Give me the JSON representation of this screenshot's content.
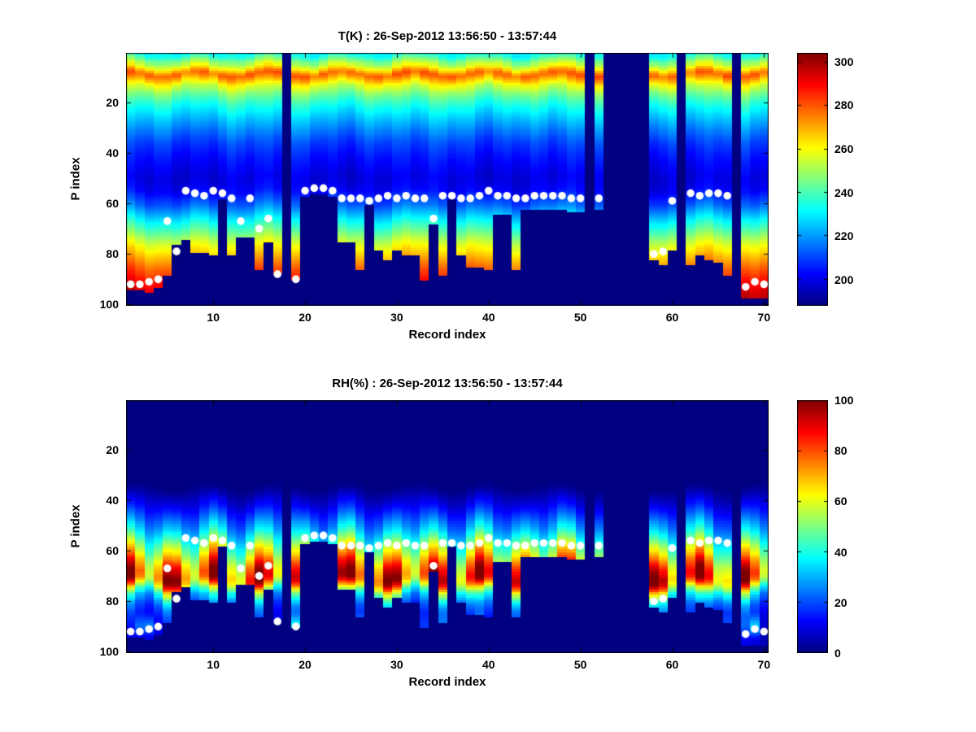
{
  "figure": {
    "background": "#ffffff",
    "nodata_color": "#000080",
    "marker_color": "#ffffff"
  },
  "chart_data": {
    "type": "heatmap",
    "colormap": "jet",
    "shared": {
      "x_label": "Record index",
      "y_label": "P index",
      "x_range": [
        1,
        70
      ],
      "y_range": [
        1,
        100
      ],
      "x_ticks": [
        10,
        20,
        30,
        40,
        50,
        60,
        70
      ],
      "y_ticks": [
        20,
        40,
        60,
        80,
        100
      ],
      "y_axis_direction": "reverse",
      "gap_records": [
        18,
        51,
        53,
        54,
        55,
        56,
        57,
        61,
        67
      ],
      "surface_cutoff_p": [
        94,
        94,
        95,
        93,
        88,
        76,
        74,
        79,
        79,
        80,
        58,
        80,
        73,
        73,
        86,
        75,
        87,
        null,
        90,
        57,
        56,
        56,
        57,
        75,
        75,
        86,
        60,
        78,
        82,
        78,
        80,
        80,
        90,
        68,
        88,
        58,
        80,
        85,
        85,
        86,
        64,
        64,
        86,
        62,
        62,
        62,
        62,
        62,
        63,
        63,
        null,
        62,
        null,
        null,
        null,
        null,
        null,
        82,
        84,
        78,
        null,
        84,
        80,
        82,
        83,
        88,
        null,
        97,
        97,
        97
      ],
      "white_dots": [
        [
          1,
          92
        ],
        [
          2,
          92
        ],
        [
          3,
          91
        ],
        [
          4,
          90
        ],
        [
          5,
          67
        ],
        [
          6,
          79
        ],
        [
          7,
          55
        ],
        [
          8,
          56
        ],
        [
          9,
          57
        ],
        [
          10,
          55
        ],
        [
          11,
          56
        ],
        [
          12,
          58
        ],
        [
          13,
          67
        ],
        [
          14,
          58
        ],
        [
          15,
          70
        ],
        [
          16,
          66
        ],
        [
          17,
          88
        ],
        [
          19,
          90
        ],
        [
          20,
          55
        ],
        [
          21,
          54
        ],
        [
          22,
          54
        ],
        [
          23,
          55
        ],
        [
          24,
          58
        ],
        [
          25,
          58
        ],
        [
          26,
          58
        ],
        [
          27,
          59
        ],
        [
          28,
          58
        ],
        [
          29,
          57
        ],
        [
          30,
          58
        ],
        [
          31,
          57
        ],
        [
          32,
          58
        ],
        [
          33,
          58
        ],
        [
          34,
          66
        ],
        [
          35,
          57
        ],
        [
          36,
          57
        ],
        [
          37,
          58
        ],
        [
          38,
          58
        ],
        [
          39,
          57
        ],
        [
          40,
          55
        ],
        [
          41,
          57
        ],
        [
          42,
          57
        ],
        [
          43,
          58
        ],
        [
          44,
          58
        ],
        [
          45,
          57
        ],
        [
          46,
          57
        ],
        [
          47,
          57
        ],
        [
          48,
          57
        ],
        [
          49,
          58
        ],
        [
          50,
          58
        ],
        [
          52,
          58
        ],
        [
          58,
          80
        ],
        [
          59,
          79
        ],
        [
          60,
          59
        ],
        [
          62,
          56
        ],
        [
          63,
          57
        ],
        [
          64,
          56
        ],
        [
          65,
          56
        ],
        [
          66,
          57
        ],
        [
          68,
          93
        ],
        [
          69,
          91
        ],
        [
          70,
          92
        ]
      ],
      "marker": {
        "shape": "circle",
        "color": "#ffffff"
      }
    },
    "panels": [
      {
        "name": "temperature",
        "title": "T(K) : 26-Sep-2012 13:56:50 - 13:57:44",
        "units": "K",
        "color_range": [
          188,
          304
        ],
        "colorbar_ticks": [
          200,
          220,
          240,
          260,
          280,
          300
        ],
        "vertical_profile": [
          [
            1,
            232
          ],
          [
            3,
            242
          ],
          [
            6,
            258
          ],
          [
            8,
            272
          ],
          [
            9,
            277
          ],
          [
            11,
            268
          ],
          [
            13,
            258
          ],
          [
            16,
            247
          ],
          [
            20,
            237
          ],
          [
            25,
            227
          ],
          [
            30,
            219
          ],
          [
            35,
            211
          ],
          [
            42,
            204
          ],
          [
            50,
            199
          ],
          [
            55,
            202
          ],
          [
            60,
            212
          ],
          [
            65,
            226
          ],
          [
            70,
            240
          ],
          [
            75,
            254
          ],
          [
            80,
            266
          ],
          [
            85,
            277
          ],
          [
            90,
            287
          ],
          [
            95,
            294
          ],
          [
            100,
            299
          ]
        ]
      },
      {
        "name": "relative_humidity",
        "title": "RH(%) : 26-Sep-2012 13:56:50 - 13:57:44",
        "units": "%",
        "color_range": [
          0,
          100
        ],
        "colorbar_ticks": [
          0,
          20,
          40,
          60,
          80,
          100
        ],
        "vertical_profile": [
          [
            1,
            0
          ],
          [
            34,
            0
          ],
          [
            38,
            5
          ],
          [
            42,
            13
          ],
          [
            46,
            22
          ],
          [
            50,
            32
          ],
          [
            54,
            44
          ],
          [
            58,
            58
          ],
          [
            62,
            72
          ],
          [
            65,
            84
          ],
          [
            68,
            92
          ],
          [
            70,
            97
          ],
          [
            72,
            93
          ],
          [
            74,
            78
          ],
          [
            76,
            58
          ],
          [
            79,
            38
          ],
          [
            82,
            26
          ],
          [
            86,
            18
          ],
          [
            90,
            14
          ],
          [
            95,
            10
          ],
          [
            100,
            8
          ]
        ]
      }
    ]
  }
}
